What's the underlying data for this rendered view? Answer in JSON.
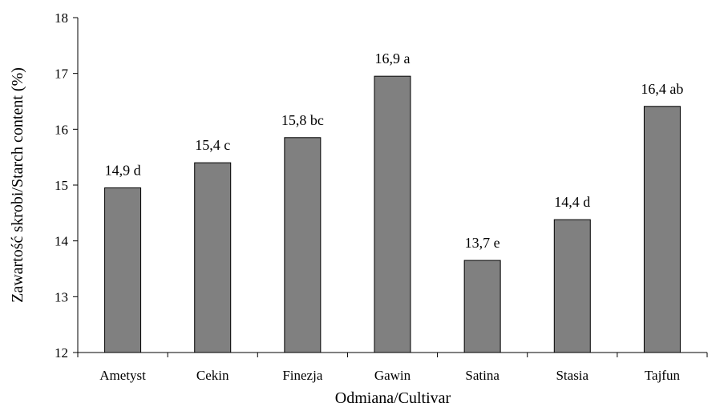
{
  "chart_data": {
    "type": "bar",
    "categories": [
      "Ametyst",
      "Cekin",
      "Finezja",
      "Gawin",
      "Satina",
      "Stasia",
      "Tajfun"
    ],
    "values": [
      14.95,
      15.4,
      15.85,
      16.95,
      13.65,
      14.38,
      16.41
    ],
    "data_labels": [
      "14,9 d",
      "15,4 c",
      "15,8 bc",
      "16,9 a",
      "13,7 e",
      "14,4 d",
      "16,4 ab"
    ],
    "title": "",
    "xlabel": "Odmiana/Cultivar",
    "ylabel": "Zawartość skrobi/Starch content (%)",
    "ylim": [
      12,
      18
    ],
    "yticks": [
      "12",
      "13",
      "14",
      "15",
      "16",
      "17",
      "18"
    ],
    "grid": false,
    "bar_color": "#808080",
    "bar_stroke": "#000000"
  }
}
